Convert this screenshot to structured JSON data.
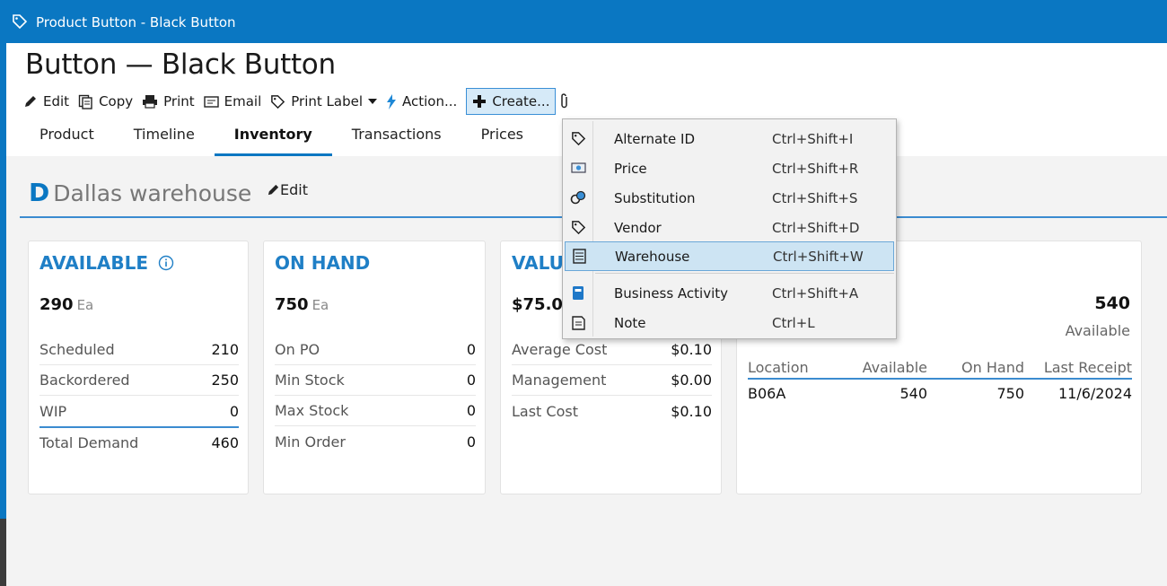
{
  "window": {
    "title": "Product Button - Black Button"
  },
  "page": {
    "title": "Button — Black Button"
  },
  "toolbar": {
    "edit": "Edit",
    "copy": "Copy",
    "print": "Print",
    "email": "Email",
    "print_label": "Print Label",
    "action": "Action...",
    "create": "Create..."
  },
  "tabs": [
    "Product",
    "Timeline",
    "Inventory",
    "Transactions",
    "Prices"
  ],
  "active_tab": "Inventory",
  "warehouse": {
    "letter": "D",
    "name": "Dallas warehouse",
    "edit_label": "Edit"
  },
  "cards": {
    "available": {
      "title": "AVAILABLE",
      "value": "290",
      "unit": "Ea",
      "rows": [
        {
          "label": "Scheduled",
          "value": "210"
        },
        {
          "label": "Backordered",
          "value": "250"
        },
        {
          "label": "WIP",
          "value": "0"
        },
        {
          "label": "Total Demand",
          "value": "460"
        }
      ]
    },
    "on_hand": {
      "title": "ON HAND",
      "value": "750",
      "unit": "Ea",
      "rows": [
        {
          "label": "On PO",
          "value": "0"
        },
        {
          "label": "Min Stock",
          "value": "0"
        },
        {
          "label": "Max Stock",
          "value": "0"
        },
        {
          "label": "Min Order",
          "value": "0"
        }
      ]
    },
    "value": {
      "title": "VALU",
      "value": "$75.0",
      "rows": [
        {
          "label": "Average Cost",
          "value": "$0.10"
        },
        {
          "label": "Management",
          "value": "$0.00"
        },
        {
          "label": "Last Cost",
          "value": "$0.10"
        }
      ]
    },
    "locations": {
      "total": "540",
      "total_label": "Available",
      "columns": [
        "Location",
        "Available",
        "On Hand",
        "Last Receipt"
      ],
      "rows": [
        {
          "location": "B06A",
          "available": "540",
          "on_hand": "750",
          "last_receipt": "11/6/2024"
        }
      ]
    }
  },
  "create_menu": {
    "items": [
      {
        "label": "Alternate ID",
        "shortcut": "Ctrl+Shift+I",
        "icon": "tag-icon"
      },
      {
        "label": "Price",
        "shortcut": "Ctrl+Shift+R",
        "icon": "price-icon"
      },
      {
        "label": "Substitution",
        "shortcut": "Ctrl+Shift+S",
        "icon": "substitution-icon"
      },
      {
        "label": "Vendor",
        "shortcut": "Ctrl+Shift+D",
        "icon": "tag-icon"
      },
      {
        "label": "Warehouse",
        "shortcut": "Ctrl+Shift+W",
        "icon": "warehouse-icon"
      },
      {
        "label": "Business Activity",
        "shortcut": "Ctrl+Shift+A",
        "icon": "notebook-icon"
      },
      {
        "label": "Note",
        "shortcut": "Ctrl+L",
        "icon": "note-icon"
      }
    ],
    "highlighted": "Warehouse"
  },
  "colors": {
    "accent": "#0a77c2",
    "header_text": "#1f7fc6",
    "highlight": "#cde4f3"
  }
}
